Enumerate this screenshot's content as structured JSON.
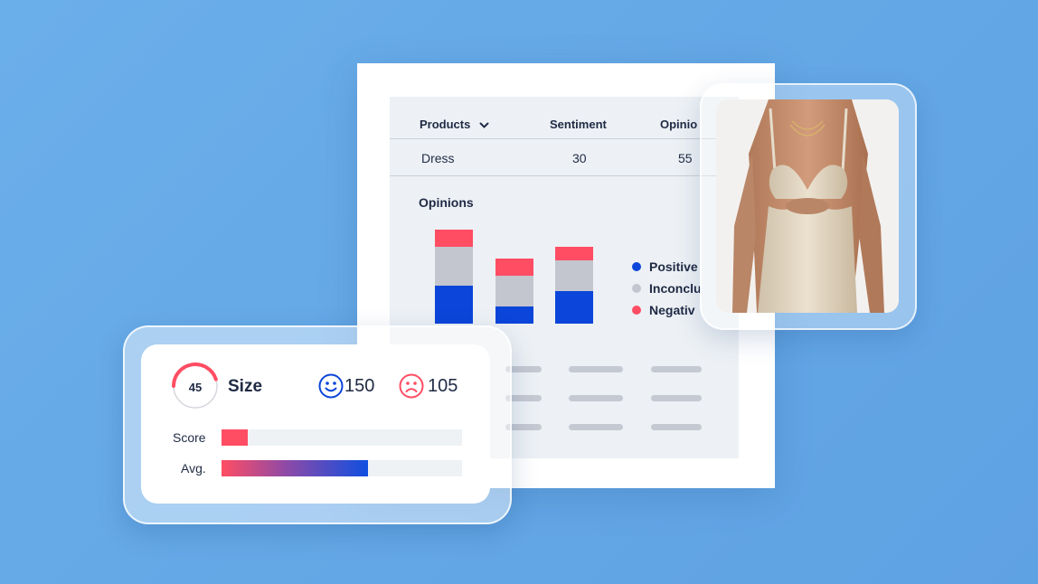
{
  "table": {
    "headers": {
      "products": "Products",
      "sentiment": "Sentiment",
      "opinions": "Opinio"
    },
    "row": {
      "product": "Dress",
      "sentiment": "30",
      "opinions": "55"
    }
  },
  "opinions_title": "Opinions",
  "legend": [
    {
      "label": "Positive",
      "color": "#0b45d9"
    },
    {
      "label": "Inconclu",
      "color": "#c4c6cf"
    },
    {
      "label": "Negativ",
      "color": "#ff4d63"
    }
  ],
  "chart_data": {
    "type": "bar",
    "stacked": true,
    "categories": [
      "",
      "",
      ""
    ],
    "series": [
      {
        "name": "Positive",
        "color": "#0b45d9",
        "values": [
          42,
          19,
          36
        ]
      },
      {
        "name": "Inconclusive",
        "color": "#c4c6cf",
        "values": [
          43,
          34,
          34
        ]
      },
      {
        "name": "Negative",
        "color": "#ff4d63",
        "values": [
          19,
          19,
          15
        ]
      }
    ],
    "grid": false,
    "legend_position": "right"
  },
  "score_card": {
    "gauge_value": "45",
    "gauge_fraction": 0.45,
    "gauge_color": "#ff4d63",
    "topic": "Size",
    "positive_count": "150",
    "negative_count": "105",
    "score_label": "Score",
    "score_fraction": 0.11,
    "avg_label": "Avg.",
    "avg_fraction": 0.61,
    "positive_icon": "happy-face-icon",
    "negative_icon": "sad-face-icon"
  },
  "photo": {
    "subject": "beige knit cut-out dress"
  }
}
